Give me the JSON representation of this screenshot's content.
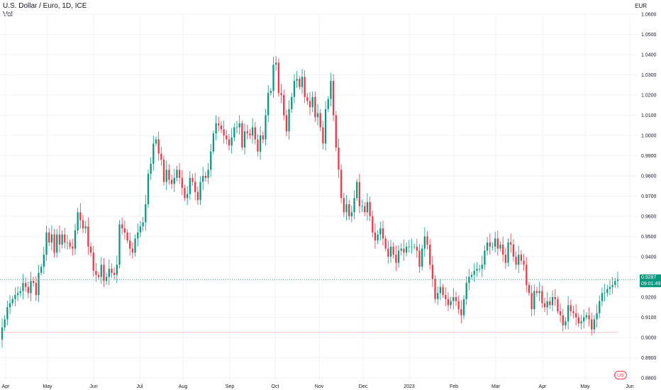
{
  "header": {
    "title": "U.S. Dollar / Euro, 1D, ICE",
    "indicator": "Vol"
  },
  "currency": "EUR",
  "last_price": {
    "value": "0.9287",
    "countdown": "09:01:49"
  },
  "colors": {
    "up": "#089981",
    "down": "#f23645",
    "last_line": "#089981",
    "low_line": "#f23645",
    "grid": "#f0f3fa"
  },
  "chart_data": {
    "type": "candlestick",
    "symbol": "U.S. Dollar / Euro, 1D, ICE",
    "ylim": [
      0.88,
      1.06
    ],
    "y_ticks": [
      "1.0600",
      "1.0500",
      "1.0400",
      "1.0300",
      "1.0200",
      "1.0100",
      "1.0000",
      "0.9900",
      "0.9800",
      "0.9700",
      "0.9600",
      "0.9500",
      "0.9400",
      "0.9300",
      "0.9200",
      "0.9100",
      "0.9000",
      "0.8900",
      "0.8800"
    ],
    "x_ticks": [
      "Apr",
      "May",
      "Jun",
      "Jul",
      "Aug",
      "Sep",
      "Oct",
      "Nov",
      "Dec",
      "2023",
      "Feb",
      "Mar",
      "Apr",
      "May",
      "Jun"
    ],
    "last_value": 0.9287,
    "reference_low": 0.9025,
    "closes": [
      0.905,
      0.909,
      0.915,
      0.917,
      0.919,
      0.921,
      0.922,
      0.923,
      0.927,
      0.925,
      0.922,
      0.928,
      0.927,
      0.921,
      0.932,
      0.935,
      0.941,
      0.952,
      0.947,
      0.951,
      0.942,
      0.951,
      0.946,
      0.951,
      0.947,
      0.947,
      0.945,
      0.944,
      0.953,
      0.962,
      0.958,
      0.954,
      0.955,
      0.945,
      0.942,
      0.933,
      0.931,
      0.93,
      0.936,
      0.928,
      0.93,
      0.934,
      0.932,
      0.931,
      0.936,
      0.956,
      0.954,
      0.952,
      0.948,
      0.944,
      0.942,
      0.949,
      0.952,
      0.955,
      0.957,
      0.966,
      0.981,
      0.986,
      0.996,
      0.998,
      0.991,
      0.988,
      0.977,
      0.983,
      0.978,
      0.976,
      0.979,
      0.983,
      0.979,
      0.974,
      0.969,
      0.971,
      0.979,
      0.977,
      0.972,
      0.968,
      0.977,
      0.98,
      0.979,
      0.983,
      0.992,
      1.001,
      1.006,
      1.005,
      1.003,
      1.0,
      0.998,
      0.995,
      0.999,
      1.004,
      1.004,
      1.006,
      0.994,
      1.002,
      1.001,
      1.0,
      1.004,
      0.998,
      0.992,
      1.0,
      0.998,
      1.01,
      1.021,
      1.022,
      1.035,
      1.036,
      1.021,
      1.02,
      1.01,
      1.002,
      1.013,
      1.019,
      1.027,
      1.028,
      1.024,
      1.029,
      1.019,
      1.017,
      1.014,
      1.019,
      1.009,
      1.011,
      1.004,
      0.996,
      1.013,
      1.018,
      1.027,
      1.01,
      0.994,
      0.983,
      0.969,
      0.962,
      0.966,
      0.96,
      0.962,
      0.969,
      0.977,
      0.965,
      0.965,
      0.962,
      0.967,
      0.96,
      0.952,
      0.948,
      0.951,
      0.954,
      0.949,
      0.944,
      0.94,
      0.945,
      0.941,
      0.937,
      0.943,
      0.944,
      0.942,
      0.945,
      0.945,
      0.945,
      0.945,
      0.943,
      0.935,
      0.944,
      0.95,
      0.946,
      0.936,
      0.929,
      0.919,
      0.922,
      0.925,
      0.921,
      0.919,
      0.916,
      0.918,
      0.92,
      0.918,
      0.914,
      0.911,
      0.919,
      0.927,
      0.93,
      0.931,
      0.933,
      0.934,
      0.934,
      0.936,
      0.943,
      0.947,
      0.945,
      0.945,
      0.949,
      0.944,
      0.946,
      0.941,
      0.937,
      0.947,
      0.946,
      0.94,
      0.936,
      0.941,
      0.938,
      0.936,
      0.926,
      0.922,
      0.914,
      0.923,
      0.922,
      0.923,
      0.917,
      0.915,
      0.918,
      0.916,
      0.92,
      0.919,
      0.913,
      0.911,
      0.906,
      0.908,
      0.916,
      0.913,
      0.912,
      0.91,
      0.907,
      0.908,
      0.91,
      0.911,
      0.909,
      0.904,
      0.909,
      0.912,
      0.918,
      0.922,
      0.922,
      0.924,
      0.925,
      0.926,
      0.928,
      0.9287
    ]
  }
}
